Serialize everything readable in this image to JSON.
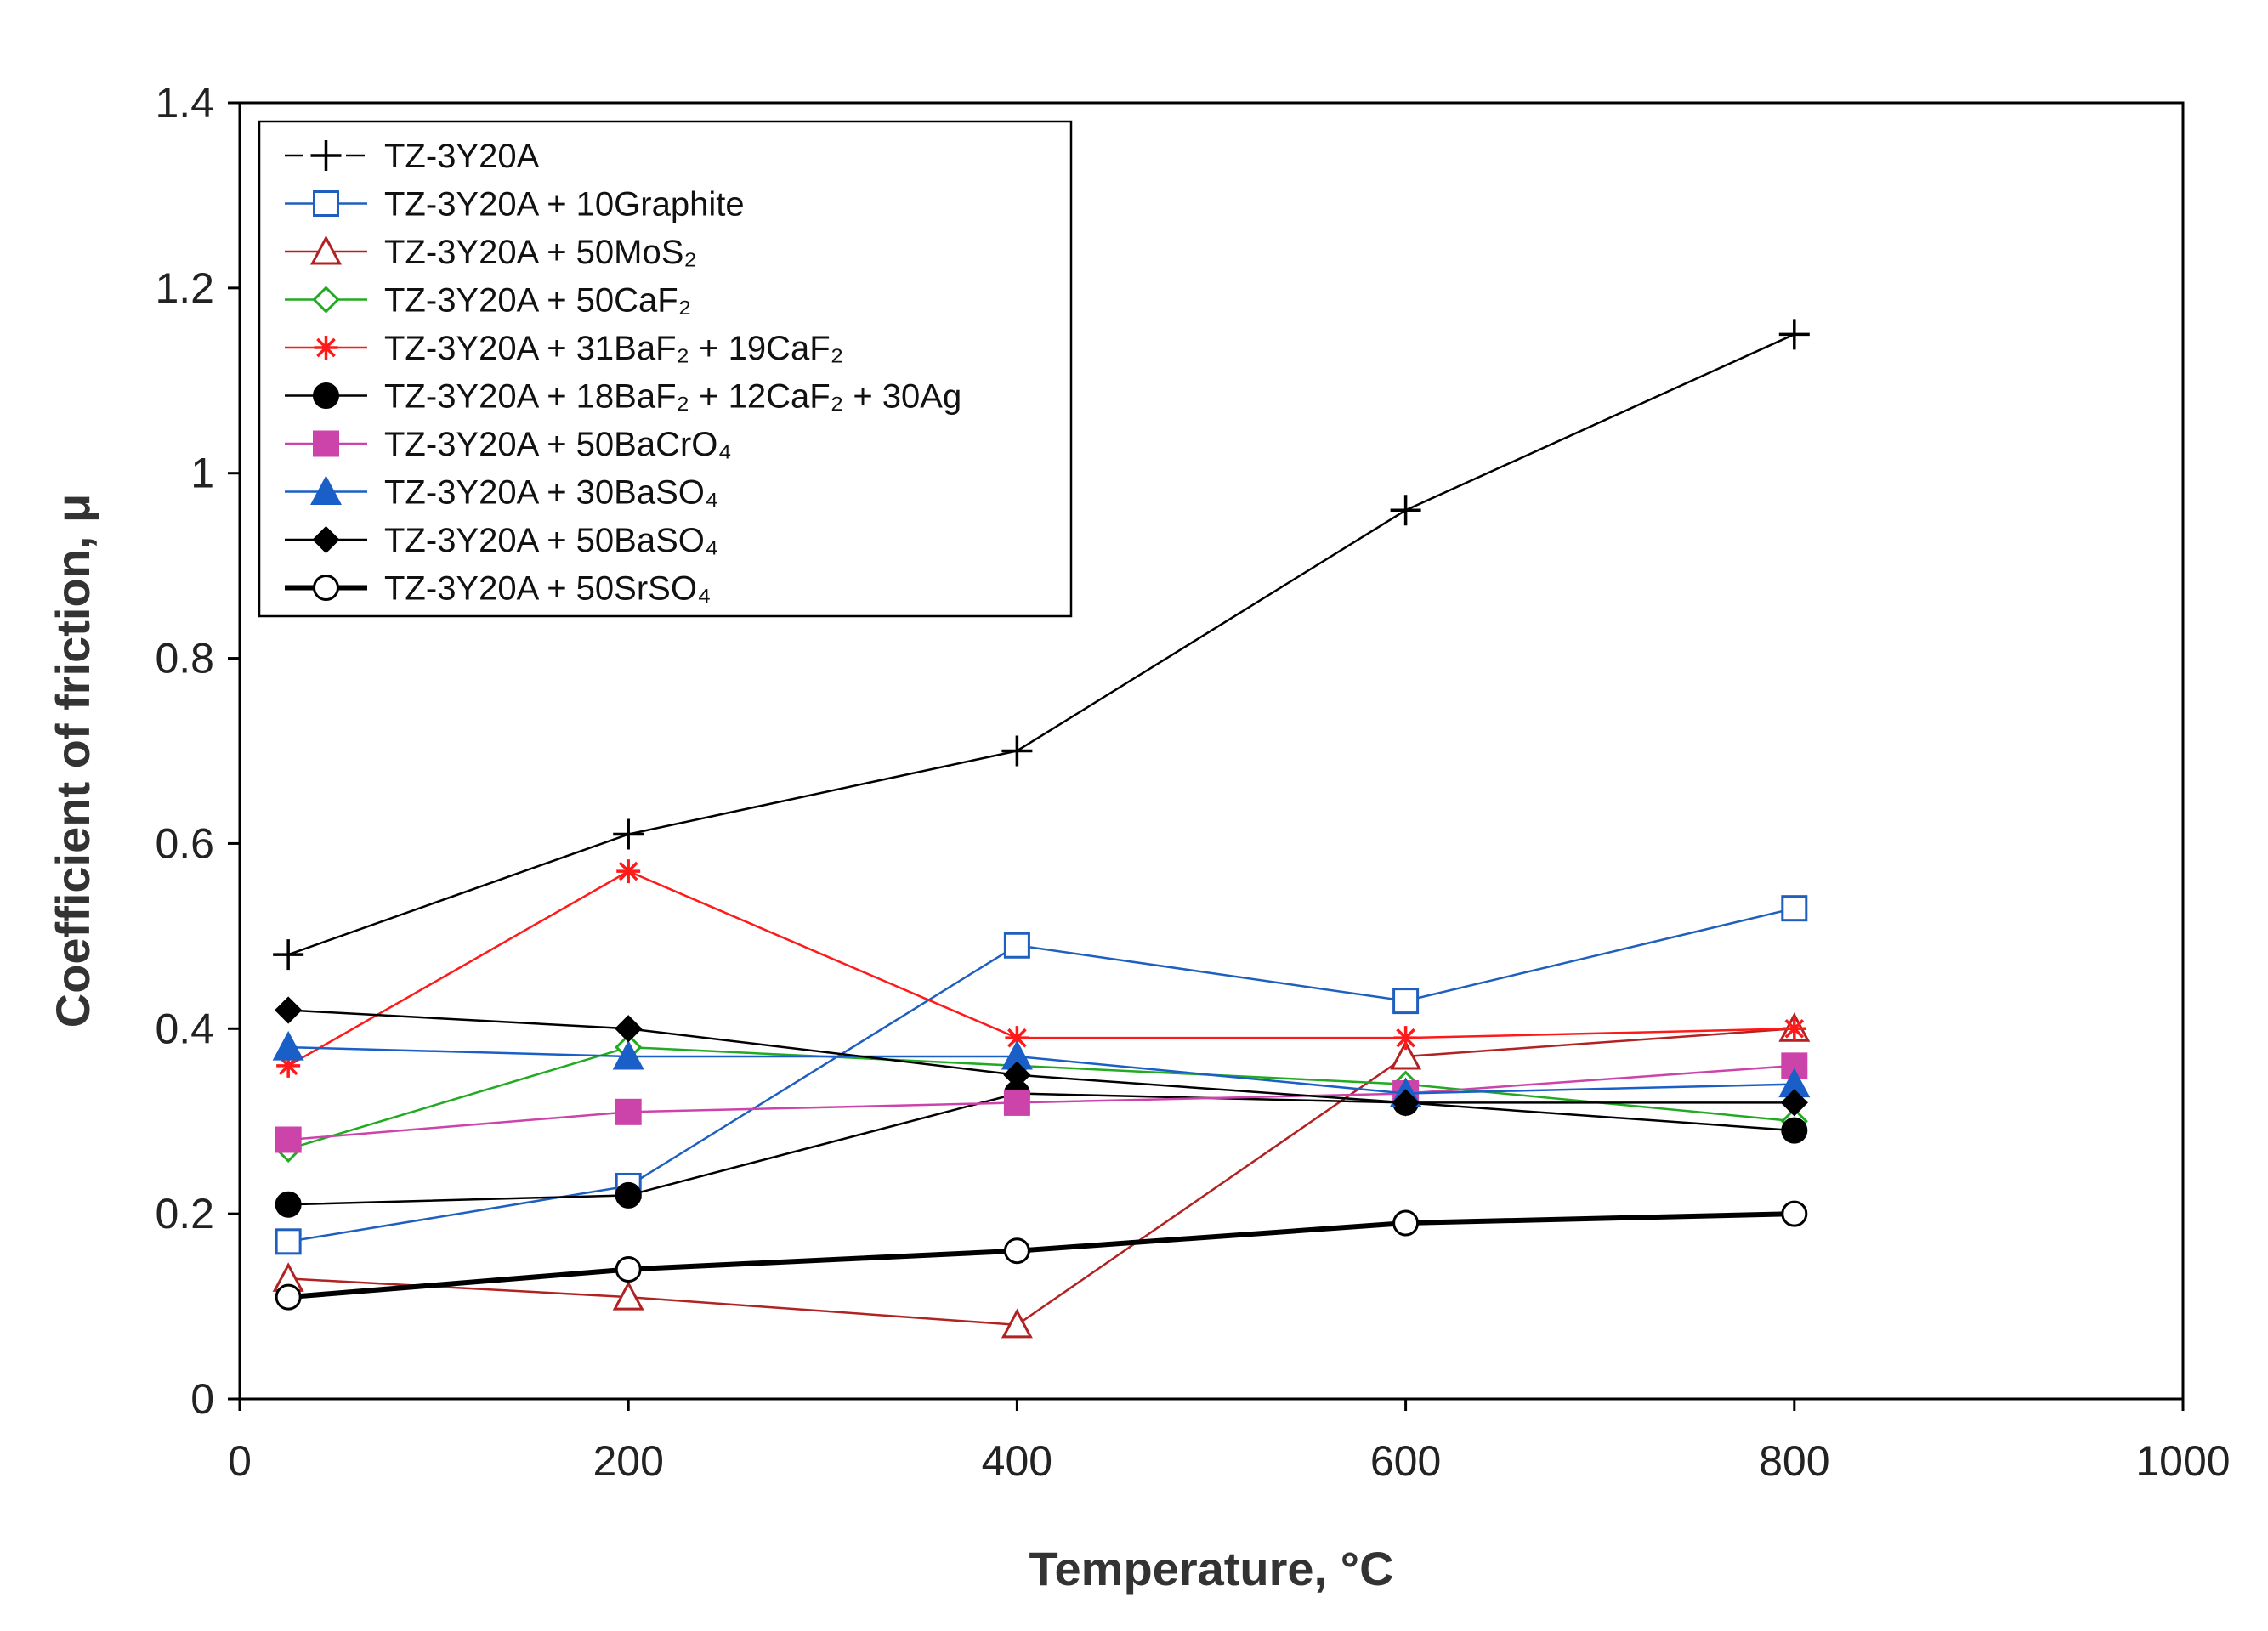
{
  "chart_data": {
    "type": "line",
    "xlabel": "Temperature, °C",
    "ylabel": "Coefficient of friction,  μ",
    "xlim": [
      0,
      1000
    ],
    "ylim": [
      0,
      1.4
    ],
    "xticks": [
      0,
      200,
      400,
      600,
      800,
      1000
    ],
    "yticks": [
      0,
      0.2,
      0.4,
      0.6,
      0.8,
      1,
      1.2,
      1.4
    ],
    "xtick_labels": [
      "0",
      "200",
      "400",
      "600",
      "800",
      "1000"
    ],
    "ytick_labels": [
      "0",
      "0.2",
      "0.4",
      "0.6",
      "0.8",
      "1",
      "1.2",
      "1.4"
    ],
    "grid": false,
    "legend_position": "top-left",
    "series": [
      {
        "name": "TZ-3Y20A",
        "marker": "plus",
        "color": "#000000",
        "dashed": true,
        "x": [
          25,
          200,
          400,
          600,
          800
        ],
        "y": [
          0.48,
          0.61,
          0.7,
          0.96,
          1.15
        ]
      },
      {
        "name": "TZ-3Y20A + 10Graphite",
        "marker": "square-open",
        "color": "#1f5fbf",
        "x": [
          25,
          200,
          400,
          600,
          800
        ],
        "y": [
          0.17,
          0.23,
          0.49,
          0.43,
          0.53
        ]
      },
      {
        "name": "TZ-3Y20A + 50MoS₂",
        "marker": "triangle-open",
        "color": "#b22222",
        "x": [
          25,
          200,
          400,
          600,
          800
        ],
        "y": [
          0.13,
          0.11,
          0.08,
          0.37,
          0.4
        ]
      },
      {
        "name": "TZ-3Y20A + 50CaF₂",
        "marker": "diamond-open",
        "color": "#22aa22",
        "x": [
          25,
          200,
          400,
          600,
          800
        ],
        "y": [
          0.27,
          0.38,
          0.36,
          0.34,
          0.3
        ]
      },
      {
        "name": "TZ-3Y20A + 31BaF₂ + 19CaF₂",
        "marker": "star",
        "color": "#ff1a1a",
        "x": [
          25,
          200,
          400,
          600,
          800
        ],
        "y": [
          0.36,
          0.57,
          0.39,
          0.39,
          0.4
        ]
      },
      {
        "name": "TZ-3Y20A + 18BaF₂ + 12CaF₂ + 30Ag",
        "marker": "circle-filled",
        "color": "#000000",
        "x": [
          25,
          200,
          400,
          600,
          800
        ],
        "y": [
          0.21,
          0.22,
          0.33,
          0.32,
          0.29
        ]
      },
      {
        "name": "TZ-3Y20A + 50BaCrO₄",
        "marker": "square-filled",
        "color": "#cc44aa",
        "x": [
          25,
          200,
          400,
          600,
          800
        ],
        "y": [
          0.28,
          0.31,
          0.32,
          0.33,
          0.36
        ]
      },
      {
        "name": "TZ-3Y20A + 30BaSO₄",
        "marker": "triangle-filled",
        "color": "#1a5fc8",
        "x": [
          25,
          200,
          400,
          600,
          800
        ],
        "y": [
          0.38,
          0.37,
          0.37,
          0.33,
          0.34
        ]
      },
      {
        "name": "TZ-3Y20A + 50BaSO₄",
        "marker": "diamond-filled",
        "color": "#000000",
        "x": [
          25,
          200,
          400,
          600,
          800
        ],
        "y": [
          0.42,
          0.4,
          0.35,
          0.32,
          0.32
        ]
      },
      {
        "name": "TZ-3Y20A + 50SrSO₄",
        "marker": "circle-open",
        "color": "#000000",
        "bold": true,
        "x": [
          25,
          200,
          400,
          600,
          800
        ],
        "y": [
          0.11,
          0.14,
          0.16,
          0.19,
          0.2
        ]
      }
    ]
  }
}
